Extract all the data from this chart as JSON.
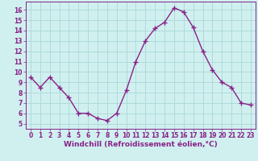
{
  "x": [
    0,
    1,
    2,
    3,
    4,
    5,
    6,
    7,
    8,
    9,
    10,
    11,
    12,
    13,
    14,
    15,
    16,
    17,
    18,
    19,
    20,
    21,
    22,
    23
  ],
  "y": [
    9.5,
    8.5,
    9.5,
    8.5,
    7.5,
    6.0,
    6.0,
    5.5,
    5.3,
    6.0,
    8.2,
    11.0,
    13.0,
    14.2,
    14.8,
    16.2,
    15.8,
    14.3,
    12.0,
    10.2,
    9.0,
    8.5,
    7.0,
    6.8
  ],
  "line_color": "#882288",
  "marker": "+",
  "marker_size": 4,
  "marker_lw": 1.0,
  "line_width": 1.0,
  "bg_color": "#d0f0f0",
  "grid_color": "#b0dada",
  "xlabel": "Windchill (Refroidissement éolien,°C)",
  "xlabel_color": "#882288",
  "ylim": [
    4.5,
    16.8
  ],
  "xlim": [
    -0.5,
    23.5
  ],
  "yticks": [
    5,
    6,
    7,
    8,
    9,
    10,
    11,
    12,
    13,
    14,
    15,
    16
  ],
  "xticks": [
    0,
    1,
    2,
    3,
    4,
    5,
    6,
    7,
    8,
    9,
    10,
    11,
    12,
    13,
    14,
    15,
    16,
    17,
    18,
    19,
    20,
    21,
    22,
    23
  ],
  "tick_color": "#882288",
  "spine_color": "#882288",
  "font_size_xlabel": 6.5,
  "font_size_ticks": 5.5
}
